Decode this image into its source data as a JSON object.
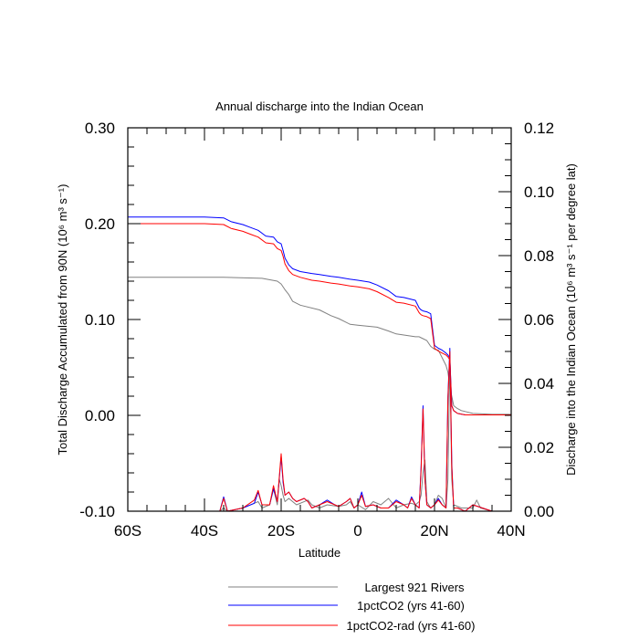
{
  "chart_data": {
    "type": "line",
    "title": "Annual discharge into the Indian Ocean",
    "xlabel": "Latitude",
    "ylabel_left": "Total Discharge Accumulated from 90N (10⁶ m³ s⁻¹)",
    "ylabel_right": "Discharge into the Indian Ocean (10⁶ m³ s⁻¹ per degree lat)",
    "xlim": [
      -60,
      40
    ],
    "ylim_left": [
      -0.1,
      0.3
    ],
    "ylim_right": [
      0.0,
      0.12
    ],
    "x_ticks": [
      -60,
      -40,
      -20,
      0,
      20,
      40
    ],
    "x_tick_labels": [
      "60S",
      "40S",
      "20S",
      "0",
      "20N",
      "40N"
    ],
    "y_left_ticks": [
      -0.1,
      0.0,
      0.1,
      0.2,
      0.3
    ],
    "y_left_tick_labels": [
      "-0.10",
      "0.00",
      "0.10",
      "0.20",
      "0.30"
    ],
    "y_right_ticks": [
      0.0,
      0.02,
      0.04,
      0.06,
      0.08,
      0.1,
      0.12
    ],
    "y_right_tick_labels": [
      "0.00",
      "0.02",
      "0.04",
      "0.06",
      "0.08",
      "0.10",
      "0.12"
    ],
    "legend_position": "bottom",
    "series": [
      {
        "name": "Largest 921 Rivers",
        "color": "#808080",
        "axis": "left",
        "x": [
          -60,
          -35,
          -25,
          -21,
          -20,
          -19,
          -18,
          -17,
          -15,
          -10,
          -7,
          -5,
          -2,
          0,
          5,
          8,
          10,
          15,
          16,
          16.5,
          17,
          18,
          19,
          20,
          21,
          22,
          23,
          23.5,
          24,
          25,
          26,
          27,
          28,
          30,
          35,
          40
        ],
        "values": [
          0.144,
          0.144,
          0.143,
          0.14,
          0.137,
          0.131,
          0.126,
          0.119,
          0.115,
          0.11,
          0.104,
          0.101,
          0.095,
          0.094,
          0.092,
          0.088,
          0.085,
          0.082,
          0.082,
          0.081,
          0.08,
          0.078,
          0.072,
          0.069,
          0.068,
          0.06,
          0.052,
          0.045,
          0.03,
          0.01,
          0.007,
          0.005,
          0.004,
          0.002,
          0.001,
          0.001
        ]
      },
      {
        "name": "1pctCO2 (yrs 41-60)",
        "color": "#0000ff",
        "axis": "left",
        "x": [
          -60,
          -40,
          -35,
          -33,
          -30,
          -28,
          -26,
          -24,
          -22,
          -21,
          -20,
          -19.5,
          -19,
          -18,
          -17,
          -15,
          -12,
          -10,
          -7,
          -5,
          -2,
          0,
          3,
          5,
          8,
          10,
          12,
          15,
          16,
          16.5,
          17,
          18,
          19,
          20,
          21,
          22,
          23,
          23.5,
          24,
          24.5,
          25,
          26,
          28,
          30,
          40
        ],
        "values": [
          0.207,
          0.207,
          0.206,
          0.202,
          0.199,
          0.196,
          0.193,
          0.187,
          0.186,
          0.181,
          0.179,
          0.172,
          0.164,
          0.157,
          0.153,
          0.15,
          0.148,
          0.147,
          0.145,
          0.144,
          0.142,
          0.141,
          0.139,
          0.136,
          0.13,
          0.124,
          0.123,
          0.12,
          0.112,
          0.11,
          0.109,
          0.108,
          0.106,
          0.073,
          0.07,
          0.068,
          0.065,
          0.063,
          0.06,
          0.01,
          0.005,
          0.002,
          0.0005,
          0.0005,
          0.0005
        ]
      },
      {
        "name": "1pctCO2-rad (yrs 41-60)",
        "color": "#ff0000",
        "axis": "left",
        "x": [
          -60,
          -40,
          -35,
          -33,
          -30,
          -28,
          -26,
          -24,
          -22,
          -21,
          -20,
          -19.5,
          -19,
          -18,
          -17,
          -15,
          -12,
          -10,
          -7,
          -5,
          -2,
          0,
          3,
          5,
          8,
          10,
          12,
          15,
          16,
          16.5,
          17,
          18,
          19,
          20,
          21,
          22,
          23,
          23.5,
          24,
          24.5,
          25,
          26,
          28,
          30,
          40
        ],
        "values": [
          0.2,
          0.2,
          0.199,
          0.195,
          0.192,
          0.189,
          0.186,
          0.18,
          0.179,
          0.174,
          0.172,
          0.166,
          0.158,
          0.151,
          0.147,
          0.144,
          0.141,
          0.14,
          0.138,
          0.137,
          0.135,
          0.134,
          0.132,
          0.129,
          0.123,
          0.118,
          0.117,
          0.114,
          0.107,
          0.105,
          0.104,
          0.103,
          0.101,
          0.07,
          0.067,
          0.065,
          0.063,
          0.061,
          0.058,
          0.01,
          0.005,
          0.002,
          0.0005,
          0.0005,
          0.0005
        ]
      },
      {
        "name": "Largest 921 Rivers",
        "color": "#808080",
        "axis": "right",
        "x": [
          -60,
          -36,
          -35,
          -34,
          -30,
          -27,
          -26,
          -25,
          -23,
          -22,
          -21,
          -20.5,
          -20,
          -19.5,
          -19,
          -18,
          -16,
          -13,
          -12,
          -10,
          -8,
          -5,
          -3,
          -2,
          -1,
          0,
          2,
          4,
          6,
          8,
          10,
          12,
          14,
          15,
          16,
          16.5,
          17,
          17.5,
          18,
          19,
          20,
          21,
          22,
          23,
          23.5,
          24,
          24.5,
          25,
          27,
          28,
          30,
          31,
          32,
          35,
          40
        ],
        "values": [
          0,
          0,
          0.001,
          0,
          0.001,
          0.0025,
          0.003,
          0.001,
          0.002,
          0.007,
          0.002,
          0.01,
          0.008,
          0.005,
          0.003,
          0.004,
          0.002,
          0.0035,
          0.002,
          0.001,
          0.002,
          0.0015,
          0.002,
          0.003,
          0.001,
          0.002,
          0.0005,
          0.003,
          0.002,
          0.004,
          0.001,
          0.002,
          0.0025,
          0.002,
          0.003,
          0.005,
          0.012,
          0.016,
          0.003,
          0.001,
          0.002,
          0.005,
          0.004,
          0.001,
          0.01,
          0.048,
          0.01,
          0.002,
          0.001,
          0.001,
          0.001,
          0.0035,
          0.001,
          0,
          0
        ]
      },
      {
        "name": "1pctCO2 (yrs 41-60)",
        "color": "#0000ff",
        "axis": "right",
        "x": [
          -60,
          -36,
          -35,
          -34,
          -30,
          -27,
          -26,
          -25,
          -23,
          -22,
          -21,
          -20,
          -19.5,
          -19,
          -18,
          -17,
          -16,
          -14,
          -13,
          -12,
          -10,
          -8,
          -6,
          -5,
          -3,
          -2,
          -1,
          0,
          1,
          2,
          4,
          6,
          8,
          10,
          12,
          13,
          14,
          15,
          16,
          16.5,
          17,
          17.5,
          18,
          19,
          20,
          21,
          22,
          23,
          23.5,
          24,
          24.5,
          25,
          26,
          28,
          30,
          35,
          40
        ],
        "values": [
          0,
          0,
          0.0045,
          0,
          0.001,
          0.0025,
          0.006,
          0.002,
          0.002,
          0.007,
          0.003,
          0.017,
          0.009,
          0.005,
          0.006,
          0.004,
          0.003,
          0.004,
          0.003,
          0.001,
          0.002,
          0.0035,
          0.002,
          0.0015,
          0.003,
          0.004,
          0.001,
          0.002,
          0.006,
          0.0015,
          0.002,
          0.001,
          0.001,
          0.0035,
          0.002,
          0.001,
          0.0045,
          0.002,
          0.001,
          0.014,
          0.033,
          0.01,
          0.002,
          0.001,
          0.002,
          0.004,
          0.002,
          0.001,
          0.036,
          0.051,
          0.015,
          0.001,
          0.001,
          0,
          0.002,
          0,
          0
        ]
      },
      {
        "name": "1pctCO2-rad (yrs 41-60)",
        "color": "#ff0000",
        "axis": "right",
        "x": [
          -60,
          -36,
          -35,
          -34,
          -30,
          -27,
          -26,
          -25,
          -23,
          -22,
          -21,
          -20,
          -19.5,
          -19,
          -18,
          -17,
          -16,
          -14,
          -13,
          -12,
          -10,
          -8,
          -6,
          -5,
          -3,
          -2,
          -1,
          0,
          1,
          2,
          4,
          6,
          8,
          10,
          12,
          13,
          14,
          15,
          16,
          16.5,
          17,
          17.5,
          18,
          19,
          20,
          21,
          22,
          23,
          23.5,
          24,
          24.5,
          25,
          26,
          28,
          30,
          35,
          40
        ],
        "values": [
          0,
          0,
          0.004,
          0,
          0.001,
          0.0035,
          0.0065,
          0.002,
          0.002,
          0.008,
          0.003,
          0.018,
          0.01,
          0.005,
          0.006,
          0.004,
          0.003,
          0.004,
          0.003,
          0.001,
          0.002,
          0.003,
          0.002,
          0.0015,
          0.003,
          0.004,
          0.001,
          0.002,
          0.005,
          0.0015,
          0.002,
          0.001,
          0.001,
          0.003,
          0.002,
          0.001,
          0.004,
          0.002,
          0.001,
          0.013,
          0.032,
          0.01,
          0.002,
          0.001,
          0.002,
          0.0035,
          0.002,
          0.001,
          0.035,
          0.05,
          0.014,
          0.001,
          0.001,
          0,
          0.002,
          0,
          0
        ]
      }
    ]
  },
  "legend": {
    "items": [
      {
        "name": "Largest 921 Rivers",
        "color": "#808080"
      },
      {
        "name": "1pctCO2 (yrs 41-60)",
        "color": "#0000ff"
      },
      {
        "name": "1pctCO2-rad (yrs 41-60)",
        "color": "#ff0000"
      }
    ]
  }
}
